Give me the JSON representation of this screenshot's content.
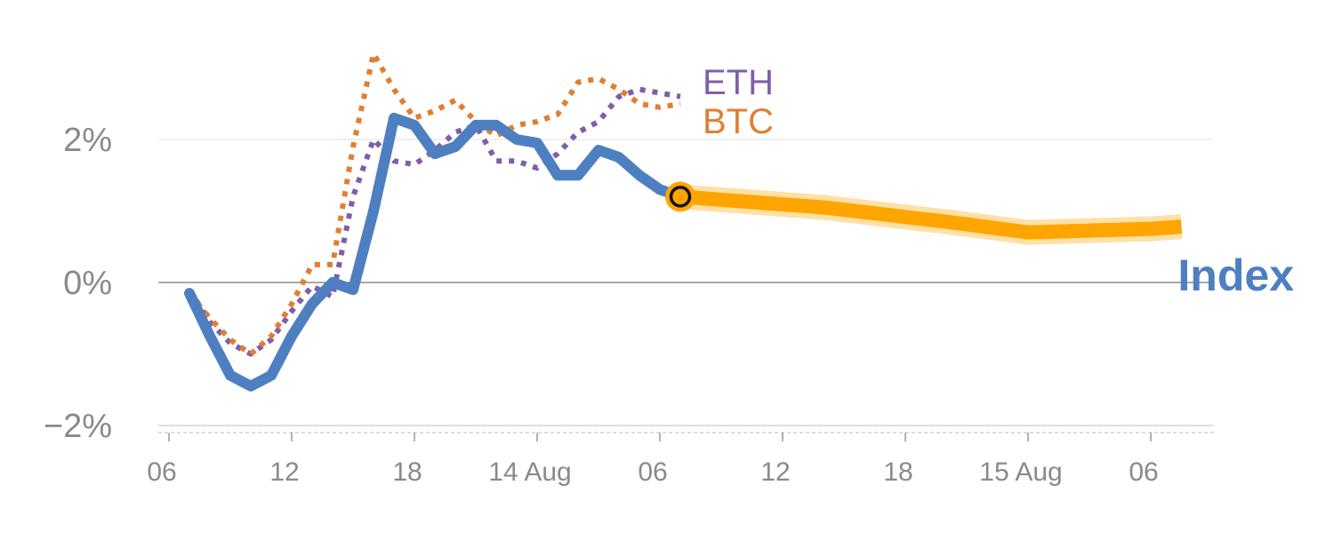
{
  "chart_data": {
    "type": "line",
    "x_unit": "hours",
    "x_tick_labels": [
      {
        "hour": 0,
        "label": "06"
      },
      {
        "hour": 6,
        "label": "12"
      },
      {
        "hour": 12,
        "label": "18"
      },
      {
        "hour": 18,
        "label": "14 Aug"
      },
      {
        "hour": 24,
        "label": "06"
      },
      {
        "hour": 30,
        "label": "12"
      },
      {
        "hour": 36,
        "label": "18"
      },
      {
        "hour": 42,
        "label": "15 Aug"
      },
      {
        "hour": 48,
        "label": "06"
      }
    ],
    "y_ticks": [
      {
        "value": 2,
        "label": "2%"
      },
      {
        "value": 0,
        "label": "0%"
      },
      {
        "value": -2,
        "label": "−2%"
      }
    ],
    "xlim": [
      -0.3,
      50.5
    ],
    "ylim": [
      -2.1,
      3.5
    ],
    "series": [
      {
        "name": "ETH",
        "color": "#7f5fa8",
        "style": "dotted",
        "x": [
          1,
          2,
          3,
          4,
          5,
          6,
          7,
          8,
          9,
          10,
          11,
          12,
          13,
          14,
          15,
          16,
          17,
          18,
          19,
          20,
          21,
          22,
          23,
          24,
          25
        ],
        "y": [
          -0.1,
          -0.55,
          -0.85,
          -1.0,
          -0.8,
          -0.4,
          -0.05,
          -0.2,
          1.2,
          2.0,
          1.7,
          1.65,
          1.85,
          2.1,
          2.2,
          1.7,
          1.7,
          1.6,
          1.8,
          2.1,
          2.25,
          2.6,
          2.7,
          2.65,
          2.6
        ]
      },
      {
        "name": "BTC",
        "color": "#e07f33",
        "style": "dotted",
        "x": [
          1,
          2,
          3,
          4,
          5,
          6,
          7,
          8,
          9,
          10,
          11,
          12,
          13,
          14,
          15,
          16,
          17,
          18,
          19,
          20,
          21,
          22,
          23,
          24,
          25
        ],
        "y": [
          -0.15,
          -0.5,
          -0.8,
          -1.0,
          -0.75,
          -0.3,
          0.25,
          0.25,
          1.9,
          3.2,
          2.7,
          2.3,
          2.4,
          2.55,
          2.25,
          2.05,
          2.2,
          2.25,
          2.35,
          2.8,
          2.85,
          2.7,
          2.5,
          2.45,
          2.5
        ]
      },
      {
        "name": "Index",
        "color": "#4e7fc0",
        "style": "solid",
        "x": [
          1,
          2,
          3,
          4,
          5,
          6,
          7,
          8,
          9,
          10,
          11,
          12,
          13,
          14,
          15,
          16,
          17,
          18,
          19,
          20,
          21,
          22,
          23,
          24,
          25
        ],
        "y": [
          -0.15,
          -0.75,
          -1.3,
          -1.45,
          -1.3,
          -0.75,
          -0.3,
          0.0,
          -0.1,
          1.0,
          2.3,
          2.2,
          1.8,
          1.9,
          2.2,
          2.2,
          2.0,
          1.95,
          1.5,
          1.5,
          1.85,
          1.75,
          1.5,
          1.3,
          1.2
        ]
      }
    ],
    "forecast": {
      "color": "#ffa500",
      "x": [
        25,
        32,
        38,
        42,
        48,
        49.5
      ],
      "y": [
        1.2,
        1.05,
        0.85,
        0.7,
        0.75,
        0.78
      ]
    },
    "current_point": {
      "x": 25,
      "y": 1.2
    },
    "grid": true,
    "legend": "inline-labels"
  }
}
